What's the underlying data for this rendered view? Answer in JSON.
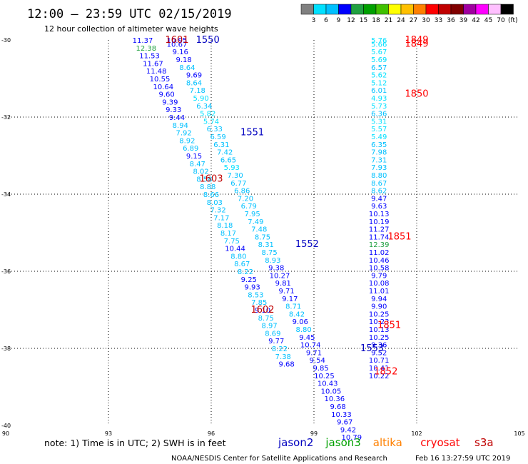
{
  "header": {
    "title": "12:00 – 23:59 UTC 02/15/2019",
    "subtitle": "12 hour collection of altimeter wave heights"
  },
  "colorbar": {
    "labels": [
      "3",
      "6",
      "9",
      "12",
      "15",
      "18",
      "21",
      "24",
      "27",
      "30",
      "33",
      "36",
      "39",
      "42",
      "45",
      "70"
    ],
    "unit": "(ft)",
    "colors": [
      "#808080",
      "#00e0ff",
      "#00c0ff",
      "#0000ff",
      "#20a040",
      "#00a000",
      "#40c000",
      "#ffff00",
      "#ffc000",
      "#ff8000",
      "#ff0000",
      "#c00000",
      "#800000",
      "#a000a0",
      "#ff00ff",
      "#ffc0ff",
      "#000000"
    ]
  },
  "footer": {
    "note": "note:  1) Time is in UTC;  2) SWH is in feet",
    "satellites": [
      {
        "name": "jason2",
        "color": "#0000c0"
      },
      {
        "name": "jason3",
        "color": "#00a000"
      },
      {
        "name": "altika",
        "color": "#ff8000"
      },
      {
        "name": "cryosat",
        "color": "#ff0000"
      },
      {
        "name": "s3a",
        "color": "#c00000"
      }
    ],
    "credit": "NOAA/NESDIS Center for Satellite Applications and Research",
    "generated": "Feb 16 13:27:59 UTC 2019"
  },
  "chart_data": {
    "type": "scatter",
    "title": "12:00 – 23:59 UTC 02/15/2019",
    "subtitle": "12 hour collection of altimeter wave heights",
    "xlim": [
      90,
      105
    ],
    "ylim": [
      -40,
      -30
    ],
    "x_ticks": [
      "90",
      "93",
      "96",
      "99",
      "102",
      "105"
    ],
    "y_ticks": [
      "-30",
      "-32",
      "-34",
      "-36",
      "-38",
      "-40"
    ],
    "grid": "dotted",
    "units": "ft",
    "tracks": [
      {
        "satellite": "jason2",
        "color": "#0000c0",
        "labels": [
          {
            "text": "1550",
            "lon": 95.9,
            "lat": -30.0
          },
          {
            "text": "1551",
            "lon": 97.2,
            "lat": -32.4
          },
          {
            "text": "1552",
            "lon": 98.8,
            "lat": -35.3
          },
          {
            "text": "1553",
            "lon": 100.7,
            "lat": -38.0
          }
        ],
        "values": [
          [
            95.0,
            -30.0,
            "10.95"
          ],
          [
            95.0,
            -30.1,
            "10.67"
          ],
          [
            95.1,
            -30.3,
            "9.16"
          ],
          [
            95.2,
            -30.5,
            "9.18"
          ],
          [
            95.3,
            -30.7,
            "8.64"
          ],
          [
            95.5,
            -30.9,
            "9.69"
          ],
          [
            95.5,
            -31.1,
            "8.64"
          ],
          [
            95.6,
            -31.3,
            "7.18"
          ],
          [
            95.7,
            -31.5,
            "5.90"
          ],
          [
            95.8,
            -31.7,
            "6.34"
          ],
          [
            95.9,
            -31.9,
            "5.82"
          ],
          [
            96.0,
            -32.1,
            "5.74"
          ],
          [
            96.1,
            -32.3,
            "6.33"
          ],
          [
            96.2,
            -32.5,
            "6.59"
          ],
          [
            96.3,
            -32.7,
            "6.31"
          ],
          [
            96.4,
            -32.9,
            "7.42"
          ],
          [
            96.5,
            -33.1,
            "6.65"
          ],
          [
            96.6,
            -33.3,
            "5.93"
          ],
          [
            96.7,
            -33.5,
            "7.30"
          ],
          [
            96.8,
            -33.7,
            "6.77"
          ],
          [
            96.9,
            -33.9,
            "6.86"
          ],
          [
            97.0,
            -34.1,
            "7.20"
          ],
          [
            97.1,
            -34.3,
            "6.79"
          ],
          [
            97.2,
            -34.5,
            "7.95"
          ],
          [
            97.3,
            -34.7,
            "7.49"
          ],
          [
            97.4,
            -34.9,
            "7.48"
          ],
          [
            97.5,
            -35.1,
            "8.75"
          ],
          [
            97.6,
            -35.3,
            "8.31"
          ],
          [
            97.7,
            -35.5,
            "8.75"
          ],
          [
            97.8,
            -35.7,
            "8.93"
          ],
          [
            97.9,
            -35.9,
            "9.38"
          ],
          [
            98.0,
            -36.1,
            "10.27"
          ],
          [
            98.1,
            -36.3,
            "9.81"
          ],
          [
            98.2,
            -36.5,
            "9.71"
          ],
          [
            98.3,
            -36.7,
            "9.17"
          ],
          [
            98.4,
            -36.9,
            "8.71"
          ],
          [
            98.5,
            -37.1,
            "8.42"
          ],
          [
            98.6,
            -37.3,
            "9.06"
          ],
          [
            98.7,
            -37.5,
            "8.80"
          ],
          [
            98.8,
            -37.7,
            "9.45"
          ],
          [
            98.9,
            -37.9,
            "10.74"
          ],
          [
            99.0,
            -38.1,
            "9.71"
          ],
          [
            99.1,
            -38.3,
            "9.54"
          ],
          [
            99.2,
            -38.5,
            "9.85"
          ],
          [
            99.3,
            -38.7,
            "10.25"
          ],
          [
            99.4,
            -38.9,
            "10.43"
          ],
          [
            99.5,
            -39.1,
            "10.05"
          ],
          [
            99.6,
            -39.3,
            "10.36"
          ],
          [
            99.7,
            -39.5,
            "9.68"
          ],
          [
            99.8,
            -39.7,
            "10.33"
          ],
          [
            99.9,
            -39.9,
            "9.67"
          ],
          [
            100.0,
            -40.1,
            "9.42"
          ],
          [
            100.1,
            -40.3,
            "10.79"
          ]
        ]
      },
      {
        "satellite": "s3a",
        "color": "#c00000",
        "labels": [
          {
            "text": "1601",
            "lon": 95.0,
            "lat": -30.0
          },
          {
            "text": "1602",
            "lon": 97.5,
            "lat": -37.0
          },
          {
            "text": "1603",
            "lon": 96.0,
            "lat": -33.6
          }
        ],
        "values": [
          [
            94.0,
            -30.0,
            "11.37"
          ],
          [
            94.1,
            -30.2,
            "12.38"
          ],
          [
            94.2,
            -30.4,
            "11.53"
          ],
          [
            94.3,
            -30.6,
            "11.67"
          ],
          [
            94.4,
            -30.8,
            "11.48"
          ],
          [
            94.5,
            -31.0,
            "10.55"
          ],
          [
            94.6,
            -31.2,
            "10.64"
          ],
          [
            94.7,
            -31.4,
            "9.60"
          ],
          [
            94.8,
            -31.6,
            "9.39"
          ],
          [
            94.9,
            -31.8,
            "9.33"
          ],
          [
            95.0,
            -32.0,
            "9.44"
          ],
          [
            95.1,
            -32.2,
            "8.94"
          ],
          [
            95.2,
            -32.4,
            "7.92"
          ],
          [
            95.3,
            -32.6,
            "8.92"
          ],
          [
            95.4,
            -32.8,
            "6.89"
          ],
          [
            95.5,
            -33.0,
            "9.15"
          ],
          [
            95.6,
            -33.2,
            "8.47"
          ],
          [
            95.7,
            -33.4,
            "8.02"
          ],
          [
            95.8,
            -33.6,
            "8.58"
          ],
          [
            95.9,
            -33.8,
            "8.88"
          ],
          [
            96.0,
            -34.0,
            "8.66"
          ],
          [
            96.1,
            -34.2,
            "8.03"
          ],
          [
            96.2,
            -34.4,
            "7.32"
          ],
          [
            96.3,
            -34.6,
            "7.17"
          ],
          [
            96.4,
            -34.8,
            "8.18"
          ],
          [
            96.5,
            -35.0,
            "8.17"
          ],
          [
            96.6,
            -35.2,
            "7.75"
          ],
          [
            96.7,
            -35.4,
            "10.44"
          ],
          [
            96.8,
            -35.6,
            "8.80"
          ],
          [
            96.9,
            -35.8,
            "8.67"
          ],
          [
            97.0,
            -36.0,
            "8.22"
          ],
          [
            97.1,
            -36.2,
            "9.25"
          ],
          [
            97.2,
            -36.4,
            "9.93"
          ],
          [
            97.3,
            -36.6,
            "8.53"
          ],
          [
            97.4,
            -36.8,
            "7.85"
          ],
          [
            97.5,
            -37.0,
            "9.10"
          ],
          [
            97.6,
            -37.2,
            "8.75"
          ],
          [
            97.7,
            -37.4,
            "8.97"
          ],
          [
            97.8,
            -37.6,
            "8.69"
          ],
          [
            97.9,
            -37.8,
            "9.77"
          ],
          [
            98.0,
            -38.0,
            "8.22"
          ],
          [
            98.1,
            -38.2,
            "7.38"
          ],
          [
            98.2,
            -38.4,
            "9.68"
          ]
        ]
      },
      {
        "satellite": "cryosat",
        "color": "#ff0000",
        "labels": [
          {
            "text": "1849",
            "lon": 102.0,
            "lat": -30.0
          },
          {
            "text": "1849",
            "lon": 102.0,
            "lat": -30.1
          },
          {
            "text": "1850",
            "lon": 102.0,
            "lat": -31.4
          },
          {
            "text": "1851",
            "lon": 101.5,
            "lat": -35.1
          },
          {
            "text": "1851",
            "lon": 101.2,
            "lat": -37.4
          },
          {
            "text": "1852",
            "lon": 101.1,
            "lat": -38.6
          }
        ],
        "values": [
          [
            100.9,
            -30.0,
            "5.76"
          ],
          [
            100.9,
            -30.1,
            "5.66"
          ],
          [
            100.9,
            -30.3,
            "5.67"
          ],
          [
            100.9,
            -30.5,
            "5.69"
          ],
          [
            100.9,
            -30.7,
            "6.57"
          ],
          [
            100.9,
            -30.9,
            "5.62"
          ],
          [
            100.9,
            -31.1,
            "5.12"
          ],
          [
            100.9,
            -31.3,
            "6.01"
          ],
          [
            100.9,
            -31.5,
            "4.93"
          ],
          [
            100.9,
            -31.7,
            "5.73"
          ],
          [
            100.9,
            -31.9,
            "6.36"
          ],
          [
            100.9,
            -32.1,
            "5.31"
          ],
          [
            100.9,
            -32.3,
            "5.57"
          ],
          [
            100.9,
            -32.5,
            "5.49"
          ],
          [
            100.9,
            -32.7,
            "6.35"
          ],
          [
            100.9,
            -32.9,
            "7.98"
          ],
          [
            100.9,
            -33.1,
            "7.31"
          ],
          [
            100.9,
            -33.3,
            "7.93"
          ],
          [
            100.9,
            -33.5,
            "8.80"
          ],
          [
            100.9,
            -33.7,
            "8.67"
          ],
          [
            100.9,
            -33.9,
            "8.62"
          ],
          [
            100.9,
            -34.1,
            "9.47"
          ],
          [
            100.9,
            -34.3,
            "9.63"
          ],
          [
            100.9,
            -34.5,
            "10.13"
          ],
          [
            100.9,
            -34.7,
            "10.19"
          ],
          [
            100.9,
            -34.9,
            "11.27"
          ],
          [
            100.9,
            -35.1,
            "11.74"
          ],
          [
            100.9,
            -35.3,
            "12.39"
          ],
          [
            100.9,
            -35.5,
            "11.02"
          ],
          [
            100.9,
            -35.7,
            "10.46"
          ],
          [
            100.9,
            -35.9,
            "10.58"
          ],
          [
            100.9,
            -36.1,
            "9.79"
          ],
          [
            100.9,
            -36.3,
            "10.08"
          ],
          [
            100.9,
            -36.5,
            "11.01"
          ],
          [
            100.9,
            -36.7,
            "9.94"
          ],
          [
            100.9,
            -36.9,
            "9.90"
          ],
          [
            100.9,
            -37.1,
            "10.25"
          ],
          [
            100.9,
            -37.3,
            "10.23"
          ],
          [
            100.9,
            -37.5,
            "10.13"
          ],
          [
            100.9,
            -37.7,
            "10.25"
          ],
          [
            100.9,
            -37.9,
            "9.36"
          ],
          [
            100.9,
            -38.1,
            "9.52"
          ],
          [
            100.9,
            -38.3,
            "10.71"
          ],
          [
            100.9,
            -38.5,
            "10.41"
          ],
          [
            100.9,
            -38.7,
            "10.22"
          ]
        ]
      }
    ]
  }
}
